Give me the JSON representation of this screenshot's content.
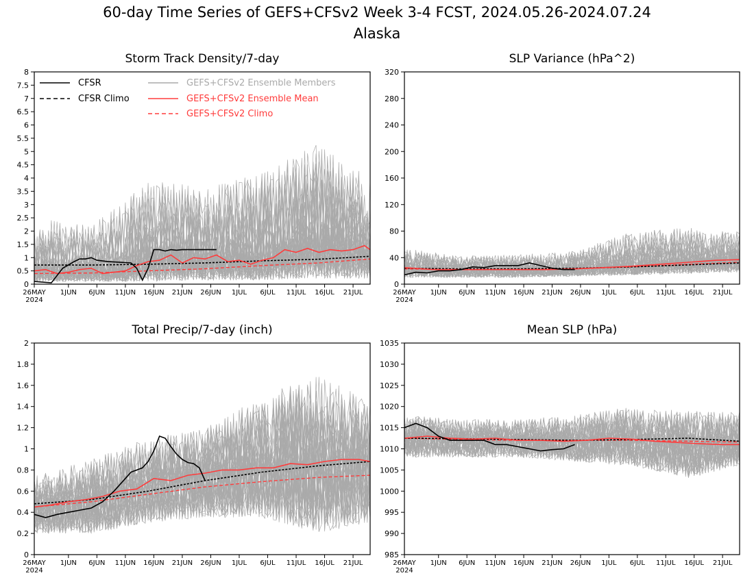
{
  "figure": {
    "title": "60-day Time Series of GEFS+CFSv2 Week 3-4 FCST, 2024.05.26-2024.07.24",
    "subtitle": "Alaska"
  },
  "legend": [
    {
      "label": "CFSR",
      "color": "#000000",
      "dash": "solid"
    },
    {
      "label": "CFSR Climo",
      "color": "#000000",
      "dash": "dashed"
    },
    {
      "label": "GEFS+CFSv2 Ensemble Members",
      "color": "#aaaaaa",
      "dash": "solid"
    },
    {
      "label": "GEFS+CFSv2 Ensemble Mean",
      "color": "#ff3b3b",
      "dash": "solid"
    },
    {
      "label": "GEFS+CFSv2 Climo",
      "color": "#ff3b3b",
      "dash": "dashed"
    }
  ],
  "colors": {
    "cfsr": "#000000",
    "members": "#aaaaaa",
    "mean": "#ff3b3b",
    "climo_red": "#ff3b3b"
  },
  "x_axis": {
    "tick_labels": [
      "26MAY",
      "1JUN",
      "6JUN",
      "11JUN",
      "16JUN",
      "21JUN",
      "26JUN",
      "1JUL",
      "6JUL",
      "11JUL",
      "16JUL",
      "21JUL"
    ],
    "tick_days": [
      0,
      6,
      11,
      16,
      21,
      26,
      31,
      36,
      41,
      46,
      51,
      56
    ],
    "year_label": "2024",
    "range_days": [
      0,
      59
    ]
  },
  "chart_data": [
    {
      "type": "line",
      "title": "Storm Track Density/7-day",
      "ylim": [
        0,
        8
      ],
      "yticks": [
        0,
        0.5,
        1,
        1.5,
        2,
        2.5,
        3,
        3.5,
        4,
        4.5,
        5,
        5.5,
        6,
        6.5,
        7,
        7.5,
        8
      ],
      "ytick_labels": [
        "0",
        "0.5",
        "1",
        "1.5",
        "2",
        "2.5",
        "3",
        "3.5",
        "4",
        "4.5",
        "5",
        "5.5",
        "6",
        "6.5",
        "7",
        "7.5",
        "8"
      ],
      "series": {
        "cfsr": {
          "x": [
            0,
            3,
            5,
            7,
            8,
            9,
            10,
            11,
            13,
            17,
            18,
            19,
            20,
            21,
            22,
            23,
            24,
            25,
            26,
            27,
            28,
            29,
            30,
            31,
            32
          ],
          "y": [
            0.1,
            0.05,
            0.6,
            0.85,
            0.95,
            0.95,
            1.0,
            0.9,
            0.85,
            0.8,
            0.6,
            0.15,
            0.6,
            1.3,
            1.3,
            1.25,
            1.3,
            1.28,
            1.3,
            1.3,
            1.3,
            1.3,
            1.3,
            1.3,
            1.3
          ]
        },
        "cfsr_climo": {
          "x": [
            0,
            10,
            20,
            30,
            40,
            50,
            59
          ],
          "y": [
            0.72,
            0.72,
            0.75,
            0.8,
            0.88,
            0.94,
            1.05
          ]
        },
        "ens_mean": {
          "x": [
            0,
            2,
            4,
            6,
            8,
            10,
            12,
            14,
            16,
            18,
            20,
            22,
            24,
            26,
            28,
            30,
            32,
            34,
            36,
            38,
            40,
            42,
            44,
            46,
            48,
            50,
            52,
            54,
            56,
            58,
            59
          ],
          "y": [
            0.5,
            0.55,
            0.4,
            0.45,
            0.55,
            0.6,
            0.4,
            0.45,
            0.5,
            0.7,
            0.85,
            0.9,
            1.1,
            0.8,
            1.0,
            0.95,
            1.1,
            0.85,
            0.9,
            0.75,
            0.9,
            1.0,
            1.3,
            1.2,
            1.35,
            1.2,
            1.3,
            1.25,
            1.3,
            1.45,
            1.3
          ]
        },
        "ens_climo": {
          "x": [
            0,
            10,
            20,
            30,
            40,
            50,
            59
          ],
          "y": [
            0.4,
            0.42,
            0.5,
            0.58,
            0.7,
            0.8,
            0.95
          ]
        },
        "members_envelope": {
          "x": [
            0,
            10,
            20,
            30,
            40,
            50,
            59
          ],
          "low": [
            0.1,
            0.1,
            0.1,
            0.15,
            0.15,
            0.2,
            0.2
          ],
          "high": [
            2.5,
            2.2,
            4.0,
            3.6,
            4.2,
            5.3,
            4.0
          ]
        }
      }
    },
    {
      "type": "line",
      "title": "SLP Variance (hPa^2)",
      "ylim": [
        0,
        320
      ],
      "yticks": [
        0,
        40,
        80,
        120,
        160,
        200,
        240,
        280,
        320
      ],
      "ytick_labels": [
        "0",
        "40",
        "80",
        "120",
        "160",
        "200",
        "240",
        "280",
        "320"
      ],
      "series": {
        "cfsr": {
          "x": [
            0,
            2,
            4,
            6,
            8,
            10,
            12,
            14,
            16,
            18,
            20,
            22,
            24,
            26,
            28,
            30
          ],
          "y": [
            14,
            18,
            17,
            20,
            20,
            22,
            26,
            25,
            28,
            28,
            28,
            32,
            28,
            24,
            22,
            22
          ]
        },
        "cfsr_climo": {
          "x": [
            0,
            10,
            20,
            30,
            40,
            50,
            59
          ],
          "y": [
            24,
            23,
            23,
            24,
            26,
            29,
            32
          ]
        },
        "ens_mean": {
          "x": [
            0,
            5,
            10,
            15,
            20,
            25,
            30,
            35,
            40,
            45,
            50,
            55,
            59
          ],
          "y": [
            25,
            22,
            22,
            22,
            22,
            22,
            23,
            25,
            27,
            30,
            33,
            36,
            37
          ]
        },
        "ens_climo": {
          "x": [
            0,
            10,
            20,
            30,
            40,
            50,
            59
          ],
          "y": [
            23,
            22,
            22,
            23,
            26,
            30,
            33
          ]
        },
        "members_envelope": {
          "x": [
            0,
            10,
            20,
            30,
            40,
            50,
            59
          ],
          "low": [
            10,
            10,
            10,
            12,
            14,
            16,
            18
          ],
          "high": [
            55,
            42,
            45,
            50,
            80,
            85,
            80
          ]
        }
      }
    },
    {
      "type": "line",
      "title": "Total Precip/7-day (inch)",
      "ylim": [
        0,
        2
      ],
      "yticks": [
        0,
        0.2,
        0.4,
        0.6,
        0.8,
        1,
        1.2,
        1.4,
        1.6,
        1.8,
        2
      ],
      "ytick_labels": [
        "0",
        "0.2",
        "0.4",
        "0.6",
        "0.8",
        "1",
        "1.2",
        "1.4",
        "1.6",
        "1.8",
        "2"
      ],
      "series": {
        "cfsr": {
          "x": [
            0,
            2,
            4,
            6,
            8,
            10,
            12,
            14,
            16,
            17,
            18,
            19,
            20,
            21,
            22,
            23,
            24,
            25,
            26,
            27,
            28,
            29,
            30
          ],
          "y": [
            0.38,
            0.35,
            0.38,
            0.4,
            0.42,
            0.44,
            0.5,
            0.6,
            0.72,
            0.78,
            0.8,
            0.82,
            0.88,
            0.98,
            1.12,
            1.1,
            1.02,
            0.95,
            0.9,
            0.87,
            0.86,
            0.82,
            0.7
          ]
        },
        "cfsr_climo": {
          "x": [
            0,
            10,
            20,
            30,
            40,
            50,
            59
          ],
          "y": [
            0.48,
            0.52,
            0.6,
            0.7,
            0.78,
            0.84,
            0.88
          ]
        },
        "ens_mean": {
          "x": [
            0,
            3,
            6,
            9,
            12,
            15,
            18,
            21,
            24,
            27,
            30,
            33,
            36,
            39,
            42,
            45,
            48,
            51,
            54,
            57,
            59
          ],
          "y": [
            0.45,
            0.47,
            0.5,
            0.52,
            0.55,
            0.6,
            0.62,
            0.72,
            0.7,
            0.75,
            0.77,
            0.8,
            0.8,
            0.82,
            0.82,
            0.86,
            0.85,
            0.88,
            0.9,
            0.9,
            0.88
          ]
        },
        "ens_climo": {
          "x": [
            0,
            10,
            20,
            30,
            40,
            50,
            59
          ],
          "y": [
            0.45,
            0.5,
            0.57,
            0.64,
            0.69,
            0.73,
            0.75
          ]
        },
        "members_envelope": {
          "x": [
            0,
            10,
            20,
            30,
            40,
            50,
            59
          ],
          "low": [
            0.2,
            0.2,
            0.3,
            0.35,
            0.35,
            0.2,
            0.3
          ],
          "high": [
            0.75,
            0.9,
            1.1,
            1.2,
            1.5,
            1.7,
            1.45
          ]
        }
      }
    },
    {
      "type": "line",
      "title": "Mean SLP (hPa)",
      "ylim": [
        985,
        1035
      ],
      "yticks": [
        985,
        990,
        995,
        1000,
        1005,
        1010,
        1015,
        1020,
        1025,
        1030,
        1035
      ],
      "ytick_labels": [
        "985",
        "990",
        "995",
        "1000",
        "1005",
        "1010",
        "1015",
        "1020",
        "1025",
        "1030",
        "1035"
      ],
      "series": {
        "cfsr": {
          "x": [
            0,
            2,
            4,
            6,
            8,
            10,
            12,
            14,
            16,
            18,
            20,
            22,
            24,
            26,
            28,
            30
          ],
          "y": [
            1015,
            1016,
            1015,
            1013,
            1012,
            1012,
            1012,
            1012,
            1011,
            1011,
            1010.5,
            1010,
            1009.5,
            1009.8,
            1010,
            1011
          ]
        },
        "cfsr_climo": {
          "x": [
            0,
            10,
            20,
            30,
            40,
            50,
            59
          ],
          "y": [
            1012.5,
            1012.4,
            1012.2,
            1012,
            1012.2,
            1012.5,
            1011.8
          ]
        },
        "ens_mean": {
          "x": [
            0,
            4,
            8,
            12,
            16,
            20,
            24,
            28,
            32,
            36,
            40,
            44,
            48,
            52,
            56,
            59
          ],
          "y": [
            1012.5,
            1013,
            1012.5,
            1012.3,
            1012.5,
            1012,
            1012,
            1011.8,
            1012,
            1012.5,
            1012.3,
            1011.8,
            1011.5,
            1011.2,
            1011,
            1011
          ]
        },
        "ens_climo": {
          "x": [
            0,
            10,
            20,
            30,
            40,
            50,
            59
          ],
          "y": [
            1012.5,
            1012.2,
            1012,
            1012,
            1012,
            1011.8,
            1011.6
          ]
        },
        "members_envelope": {
          "x": [
            0,
            10,
            20,
            30,
            40,
            50,
            59
          ],
          "low": [
            1008,
            1008,
            1008,
            1007,
            1006,
            1003,
            1006
          ],
          "high": [
            1018,
            1017,
            1017,
            1018,
            1020,
            1019,
            1019
          ]
        }
      }
    }
  ]
}
